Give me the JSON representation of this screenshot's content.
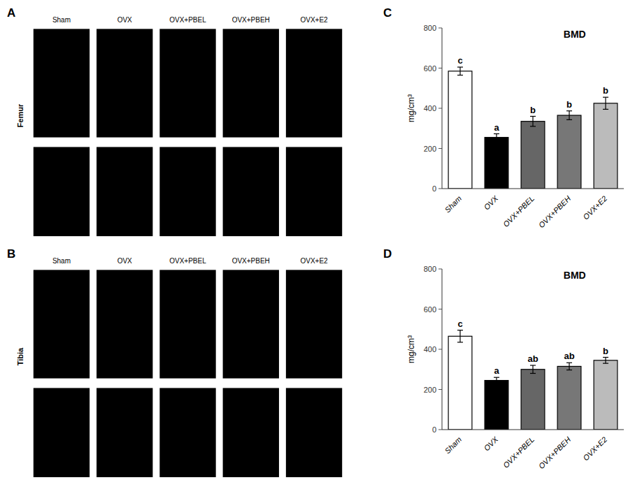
{
  "chart_data": [
    {
      "type": "image_grid",
      "panel_label": "A",
      "ylabel": "Femur",
      "color": "black",
      "categories": [
        "Sham",
        "OVX",
        "OVX+PBEL",
        "OVX+PBEH",
        "OVX+E2"
      ]
    },
    {
      "type": "image_grid",
      "panel_label": "B",
      "ylabel": "Tibia",
      "color": "black",
      "categories": [
        "Sham",
        "OVX",
        "OVX+PBEL",
        "OVX+PBEH",
        "OVX+E2"
      ]
    },
    {
      "type": "bar",
      "panel_label": "C",
      "title": "BMD",
      "ylabel": "mg/cm³",
      "categories": [
        "Sham",
        "OVX",
        "OVX+PBEL",
        "OVX+PBEH",
        "OVX+E2"
      ],
      "values": [
        585,
        255,
        335,
        365,
        425
      ],
      "errors": [
        20,
        18,
        25,
        22,
        30
      ],
      "colors": [
        "white",
        "black",
        "#666666",
        "#777777",
        "#bbbbbb"
      ],
      "ylim": [
        0,
        800
      ],
      "yticks": [
        0,
        200,
        400,
        600,
        800
      ],
      "annotations": [
        "c",
        "a",
        "b",
        "b",
        "b"
      ]
    },
    {
      "type": "bar",
      "panel_label": "D",
      "title": "BMD",
      "ylabel": "mg/cm³",
      "categories": [
        "Sham",
        "OVX",
        "OVX+PBEL",
        "OVX+PBEH",
        "OVX+E2"
      ],
      "values": [
        465,
        245,
        300,
        315,
        345
      ],
      "errors": [
        30,
        15,
        20,
        18,
        15
      ],
      "colors": [
        "white",
        "black",
        "#666666",
        "#777777",
        "#bbbbbb"
      ],
      "ylim": [
        0,
        800
      ],
      "yticks": [
        0,
        200,
        400,
        600,
        800
      ],
      "annotations": [
        "c",
        "a",
        "ab",
        "ab",
        "b"
      ]
    }
  ]
}
